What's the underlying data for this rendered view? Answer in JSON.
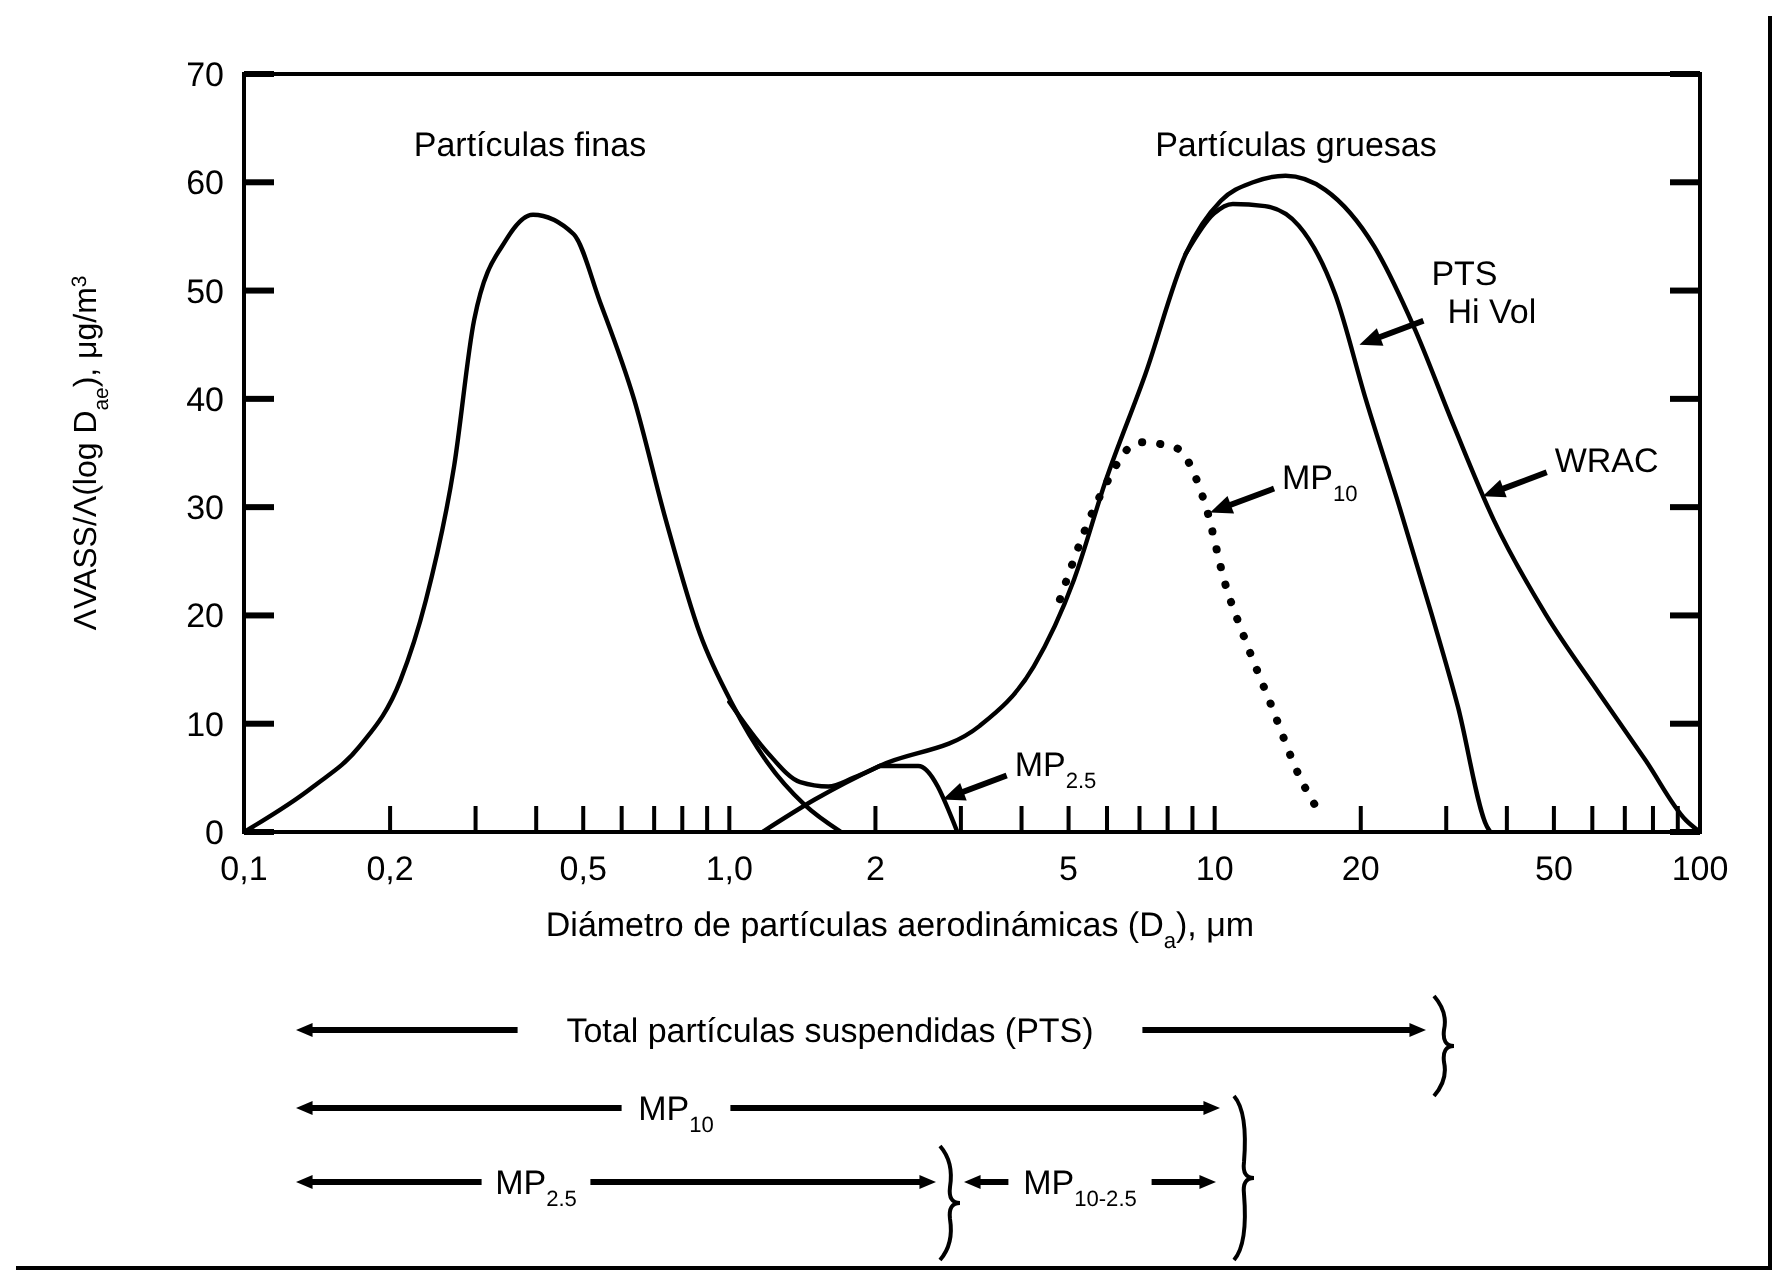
{
  "chart_data": {
    "type": "line",
    "xlabel": "Diámetro de partículas aerodinámicas (D$_{a}$), μm",
    "ylabel": "ΛVASS/Λ(log D$_{ae}$), μg/m$^{3}$",
    "log": "x",
    "marker": "none",
    "line_style": "solid",
    "xlim": [
      0.1,
      100
    ],
    "ylim": [
      0,
      70
    ],
    "xticks": [
      {
        "value": 0.1,
        "label": "0,1"
      },
      {
        "value": 0.2,
        "label": "0,2"
      },
      {
        "value": 0.3,
        "label": null
      },
      {
        "value": 0.4,
        "label": null
      },
      {
        "value": 0.5,
        "label": "0,5"
      },
      {
        "value": 0.6,
        "label": null
      },
      {
        "value": 0.7,
        "label": null
      },
      {
        "value": 0.8,
        "label": null
      },
      {
        "value": 0.9,
        "label": null
      },
      {
        "value": 1,
        "label": "1,0"
      },
      2,
      {
        "value": 3,
        "label": null
      },
      {
        "value": 4,
        "label": null
      },
      5,
      {
        "value": 6,
        "label": null
      },
      {
        "value": 7,
        "label": null
      },
      {
        "value": 8,
        "label": null
      },
      {
        "value": 9,
        "label": null
      },
      10,
      20,
      {
        "value": 30,
        "label": null
      },
      {
        "value": 40,
        "label": null
      },
      50,
      {
        "value": 60,
        "label": null
      },
      {
        "value": 70,
        "label": null
      },
      {
        "value": 80,
        "label": null
      },
      {
        "value": 90,
        "label": null
      },
      100
    ],
    "yticks": [
      0,
      10,
      20,
      30,
      40,
      50,
      60,
      70
    ],
    "series": [
      {
        "color": "#000000",
        "x": [
          0.1,
          0.139,
          0.173,
          0.21,
          0.237,
          0.271,
          0.298,
          0.347,
          0.394,
          0.478,
          0.541,
          0.636,
          0.74,
          0.87,
          1.02,
          1.19,
          1.43,
          1.7
        ],
        "values": [
          0,
          4.2,
          7.9,
          14,
          21.4,
          33.8,
          47.3,
          54.7,
          57,
          55.2,
          49,
          40,
          28.8,
          18.3,
          11.6,
          6.6,
          2.5,
          0
        ]
      },
      {
        "color": "#000000",
        "x": [
          1.0,
          1.2,
          1.4,
          1.6,
          1.8,
          2.04
        ],
        "values": [
          12,
          7.3,
          4.6,
          4.2,
          5.0,
          6.1
        ]
      },
      {
        "color": "#000000",
        "x": [
          1.17,
          1.5,
          2.04,
          3.28,
          4.24,
          5.13,
          5.97,
          7.2,
          8.72,
          10.3,
          12,
          14,
          16.9,
          21.3,
          25.7,
          31.1,
          37.6,
          48.1,
          62.2,
          77.3,
          93.5,
          100
        ],
        "values": [
          0,
          3,
          6.1,
          9.8,
          15.3,
          23.3,
          32.5,
          42.3,
          53.4,
          58.3,
          60,
          60.6,
          59.3,
          54.1,
          46.7,
          37.5,
          28.8,
          20.1,
          12.7,
          6.6,
          1.1,
          0
        ]
      },
      {
        "color": "#000000",
        "x": [
          8.72,
          9.96,
          10.9,
          12.7,
          14.9,
          17.7,
          20.5,
          24.0,
          28.0,
          31.7,
          36.4,
          37
        ],
        "values": [
          53.4,
          57.1,
          58,
          57.8,
          56,
          49.7,
          39.9,
          30.1,
          20.1,
          11.6,
          0.5,
          0
        ]
      },
      {
        "color": "#000000",
        "x": [
          2.04,
          2.45,
          2.95
        ],
        "values": [
          6.1,
          6.1,
          0
        ]
      },
      {
        "color": "#000000",
        "line_style": "dotted",
        "x": [
          4.8,
          5.8,
          7.0,
          8.3,
          9.6,
          10.5,
          11.5,
          13,
          15,
          16.6
        ],
        "values": [
          21.5,
          31,
          36,
          35.5,
          30,
          23,
          18,
          12,
          5,
          1.5
        ]
      }
    ],
    "annotations": [
      "Partículas finas",
      "Partículas gruesas",
      {
        "text": "PTS\nHi Vol",
        "x": 19.5,
        "y": 45
      },
      {
        "text": "WRAC",
        "x": 35,
        "y": 31
      },
      {
        "text": "MP$_{10}$",
        "x": 9.6,
        "y": 29.5
      },
      {
        "text": "MP$_{2.5}$",
        "x": 2.7,
        "y": 3
      },
      "Total partículas suspendidas (PTS)",
      "MP$_{10}$",
      "MP$_{2.5}$",
      "MP$_{10-2.5}$"
    ]
  }
}
